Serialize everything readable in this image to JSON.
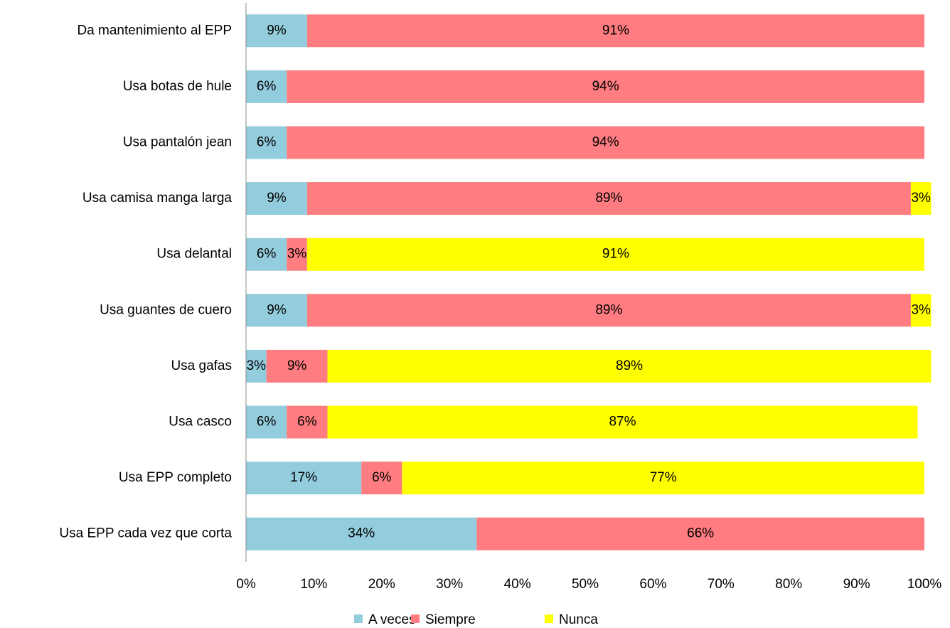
{
  "chart_data": {
    "type": "stacked-bar-horizontal",
    "categories": [
      "Da mantenimiento al EPP",
      "Usa botas de hule",
      "Usa pantalón jean",
      "Usa camisa manga larga",
      "Usa delantal",
      "Usa guantes de cuero",
      "Usa gafas",
      "Usa casco",
      "Usa EPP completo",
      "Usa EPP cada vez que corta"
    ],
    "series": [
      {
        "name": "A veces",
        "color": "#93cddd",
        "values": [
          9,
          6,
          6,
          9,
          6,
          9,
          3,
          6,
          17,
          34
        ],
        "value_labels": [
          "9%",
          "6%",
          "6%",
          "9%",
          "6%",
          "9%",
          "3%",
          "6%",
          "17%",
          "34%"
        ]
      },
      {
        "name": "Siempre",
        "color": "#ff7c80",
        "values": [
          91,
          94,
          94,
          89,
          3,
          89,
          9,
          6,
          6,
          66
        ],
        "value_labels": [
          "91%",
          "94%",
          "94%",
          "89%",
          "3%",
          "89%",
          "9%",
          "6%",
          "6%",
          "66%"
        ]
      },
      {
        "name": "Nunca",
        "color": "#ffff00",
        "values": [
          null,
          null,
          null,
          3,
          91,
          3,
          89,
          87,
          77,
          null
        ],
        "value_labels": [
          null,
          null,
          null,
          "3%",
          "91%",
          "3%",
          "89%",
          "87%",
          "77%",
          null
        ]
      }
    ],
    "xlim": [
      0,
      100
    ],
    "xticks": [
      {
        "value": 0,
        "label": "0%"
      },
      {
        "value": 10,
        "label": "10%"
      },
      {
        "value": 20,
        "label": "20%"
      },
      {
        "value": 30,
        "label": "30%"
      },
      {
        "value": 40,
        "label": "40%"
      },
      {
        "value": 50,
        "label": "50%"
      },
      {
        "value": 60,
        "label": "60%"
      },
      {
        "value": 70,
        "label": "70%"
      },
      {
        "value": 80,
        "label": "80%"
      },
      {
        "value": 90,
        "label": "90%"
      },
      {
        "value": 100,
        "label": "100%"
      }
    ],
    "legend": "bottom"
  }
}
